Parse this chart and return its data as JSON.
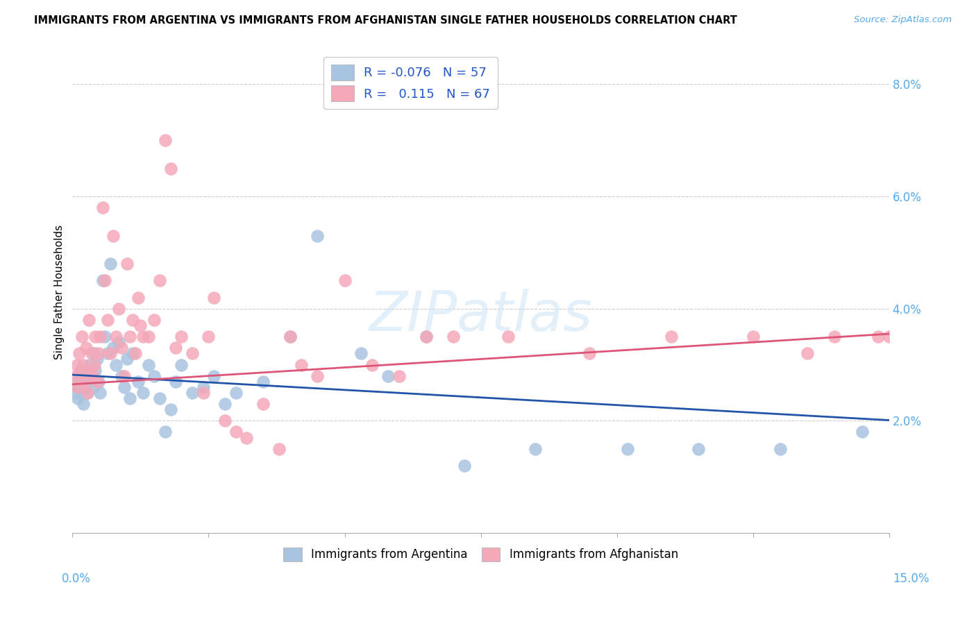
{
  "title": "IMMIGRANTS FROM ARGENTINA VS IMMIGRANTS FROM AFGHANISTAN SINGLE FATHER HOUSEHOLDS CORRELATION CHART",
  "source": "Source: ZipAtlas.com",
  "ylabel": "Single Father Households",
  "color_argentina": "#a8c4e0",
  "color_afghanistan": "#f4a8b8",
  "line_color_argentina": "#2255aa",
  "line_color_afghanistan": "#dd5577",
  "R_argentina": -0.076,
  "N_argentina": 57,
  "R_afghanistan": 0.115,
  "N_afghanistan": 67,
  "legend_label_argentina": "Immigrants from Argentina",
  "legend_label_afghanistan": "Immigrants from Afghanistan",
  "watermark": "ZIPatlas",
  "ytick_color": "#55aaee",
  "source_color": "#55aaee",
  "xlim": [
    0.0,
    15.0
  ],
  "ylim": [
    0.0,
    8.6
  ],
  "yticks": [
    2.0,
    4.0,
    6.0,
    8.0
  ],
  "arg_trend_x0": 0.0,
  "arg_trend_y0": 2.82,
  "arg_trend_x1": 15.0,
  "arg_trend_y1": 2.01,
  "afg_trend_x0": 0.0,
  "afg_trend_y0": 2.65,
  "afg_trend_x1": 15.0,
  "afg_trend_y1": 3.55,
  "argentina_x": [
    0.05,
    0.08,
    0.1,
    0.12,
    0.15,
    0.18,
    0.2,
    0.22,
    0.25,
    0.28,
    0.3,
    0.32,
    0.35,
    0.38,
    0.4,
    0.42,
    0.45,
    0.48,
    0.5,
    0.55,
    0.6,
    0.65,
    0.7,
    0.75,
    0.8,
    0.85,
    0.9,
    0.95,
    1.0,
    1.05,
    1.1,
    1.2,
    1.3,
    1.4,
    1.5,
    1.6,
    1.7,
    1.8,
    1.9,
    2.0,
    2.2,
    2.4,
    2.6,
    2.8,
    3.0,
    3.5,
    4.0,
    4.5,
    5.3,
    5.8,
    6.5,
    7.2,
    8.5,
    10.2,
    11.5,
    13.0,
    14.5
  ],
  "argentina_y": [
    2.5,
    2.7,
    2.4,
    2.6,
    2.9,
    2.5,
    2.3,
    2.6,
    2.8,
    2.5,
    2.7,
    3.0,
    2.8,
    2.6,
    3.2,
    2.9,
    3.1,
    2.7,
    2.5,
    4.5,
    3.5,
    3.2,
    4.8,
    3.3,
    3.0,
    3.4,
    2.8,
    2.6,
    3.1,
    2.4,
    3.2,
    2.7,
    2.5,
    3.0,
    2.8,
    2.4,
    1.8,
    2.2,
    2.7,
    3.0,
    2.5,
    2.6,
    2.8,
    2.3,
    2.5,
    2.7,
    3.5,
    5.3,
    3.2,
    2.8,
    3.5,
    1.2,
    1.5,
    1.5,
    1.5,
    1.5,
    1.8
  ],
  "afghanistan_x": [
    0.05,
    0.08,
    0.1,
    0.12,
    0.15,
    0.18,
    0.2,
    0.22,
    0.25,
    0.28,
    0.3,
    0.32,
    0.35,
    0.38,
    0.4,
    0.42,
    0.45,
    0.48,
    0.5,
    0.55,
    0.6,
    0.65,
    0.7,
    0.75,
    0.8,
    0.85,
    0.9,
    0.95,
    1.0,
    1.05,
    1.1,
    1.15,
    1.2,
    1.25,
    1.3,
    1.4,
    1.5,
    1.6,
    1.7,
    1.8,
    1.9,
    2.0,
    2.2,
    2.4,
    2.5,
    2.6,
    2.8,
    3.0,
    3.2,
    3.5,
    3.8,
    4.0,
    4.2,
    4.5,
    5.0,
    5.5,
    6.0,
    6.5,
    7.0,
    8.0,
    9.5,
    11.0,
    12.5,
    13.5,
    14.0,
    14.8,
    15.0
  ],
  "afghanistan_y": [
    2.8,
    3.0,
    2.6,
    3.2,
    2.9,
    3.5,
    3.0,
    2.7,
    3.3,
    2.5,
    3.8,
    2.9,
    3.2,
    2.8,
    3.0,
    3.5,
    2.7,
    3.2,
    3.5,
    5.8,
    4.5,
    3.8,
    3.2,
    5.3,
    3.5,
    4.0,
    3.3,
    2.8,
    4.8,
    3.5,
    3.8,
    3.2,
    4.2,
    3.7,
    3.5,
    3.5,
    3.8,
    4.5,
    7.0,
    6.5,
    3.3,
    3.5,
    3.2,
    2.5,
    3.5,
    4.2,
    2.0,
    1.8,
    1.7,
    2.3,
    1.5,
    3.5,
    3.0,
    2.8,
    4.5,
    3.0,
    2.8,
    3.5,
    3.5,
    3.5,
    3.2,
    3.5,
    3.5,
    3.2,
    3.5,
    3.5,
    3.5
  ]
}
